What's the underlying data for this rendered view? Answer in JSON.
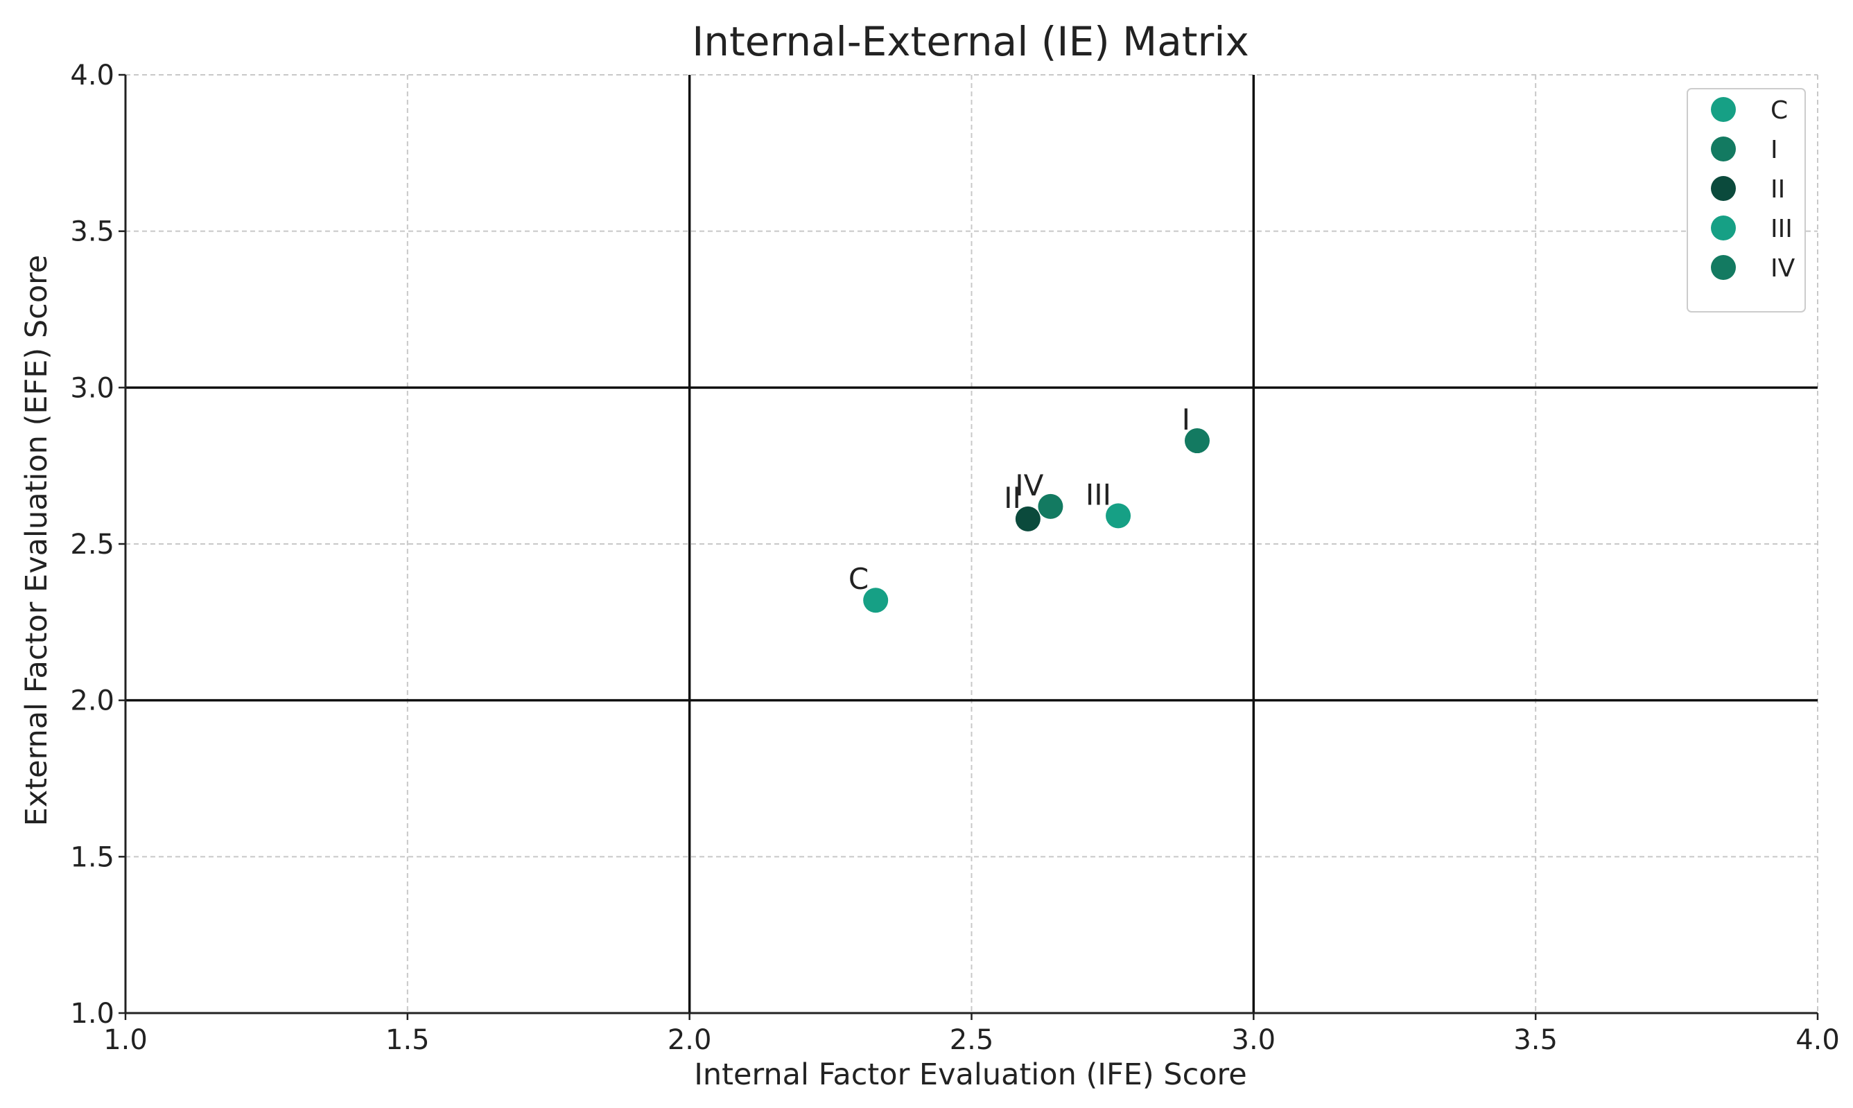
{
  "chart_data": {
    "type": "scatter",
    "title": "Internal-External (IE) Matrix",
    "xlabel": "Internal Factor Evaluation (IFE) Score",
    "ylabel": "External Factor Evaluation (EFE) Score",
    "xlim": [
      1.0,
      4.0
    ],
    "ylim": [
      1.0,
      4.0
    ],
    "xticks": [
      "1.0",
      "1.5",
      "2.0",
      "2.5",
      "3.0",
      "3.5",
      "4.0"
    ],
    "yticks": [
      "1.0",
      "1.5",
      "2.0",
      "2.5",
      "3.0",
      "3.5",
      "4.0"
    ],
    "grid": true,
    "divider_lines": {
      "x": [
        2.0,
        3.0
      ],
      "y": [
        2.0,
        3.0
      ]
    },
    "legend_position": "top-right",
    "series": [
      {
        "name": "C",
        "x": 2.33,
        "y": 2.32,
        "color": "#16a085"
      },
      {
        "name": "I",
        "x": 2.9,
        "y": 2.83,
        "color": "#137a61"
      },
      {
        "name": "II",
        "x": 2.6,
        "y": 2.58,
        "color": "#0b4a3c"
      },
      {
        "name": "III",
        "x": 2.76,
        "y": 2.59,
        "color": "#16a085"
      },
      {
        "name": "IV",
        "x": 2.64,
        "y": 2.62,
        "color": "#137a61"
      }
    ]
  }
}
